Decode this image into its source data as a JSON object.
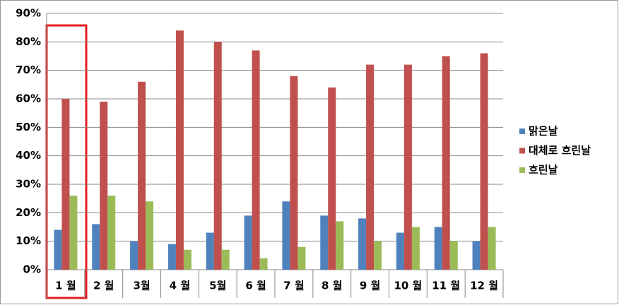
{
  "chart_data": {
    "type": "bar",
    "categories": [
      "1 월",
      "2 월",
      "3월",
      "4 월",
      "5월",
      "6 월",
      "7 월",
      "8 월",
      "9 월",
      "10 월",
      "11 월",
      "12 월"
    ],
    "series": [
      {
        "name": "맑은날",
        "color": "#4f81bd",
        "values": [
          14,
          16,
          10,
          9,
          13,
          19,
          24,
          19,
          18,
          13,
          15,
          10
        ]
      },
      {
        "name": "대체로 흐린날",
        "color": "#c0504d",
        "values": [
          60,
          59,
          66,
          84,
          80,
          77,
          68,
          64,
          72,
          72,
          75,
          76
        ]
      },
      {
        "name": "흐린날",
        "color": "#9bbb59",
        "values": [
          26,
          26,
          24,
          7,
          7,
          4,
          8,
          17,
          10,
          15,
          10,
          15
        ]
      }
    ],
    "ylim": [
      0,
      90
    ],
    "yticks": [
      {
        "value": 0,
        "label": "0%"
      },
      {
        "value": 10,
        "label": "10%"
      },
      {
        "value": 20,
        "label": "20%"
      },
      {
        "value": 30,
        "label": "30%"
      },
      {
        "value": 40,
        "label": "40%"
      },
      {
        "value": 50,
        "label": "50%"
      },
      {
        "value": 60,
        "label": "60%"
      },
      {
        "value": 70,
        "label": "70%"
      },
      {
        "value": 80,
        "label": "80%"
      },
      {
        "value": 90,
        "label": "90%"
      }
    ],
    "grid": true,
    "legend": "right"
  }
}
